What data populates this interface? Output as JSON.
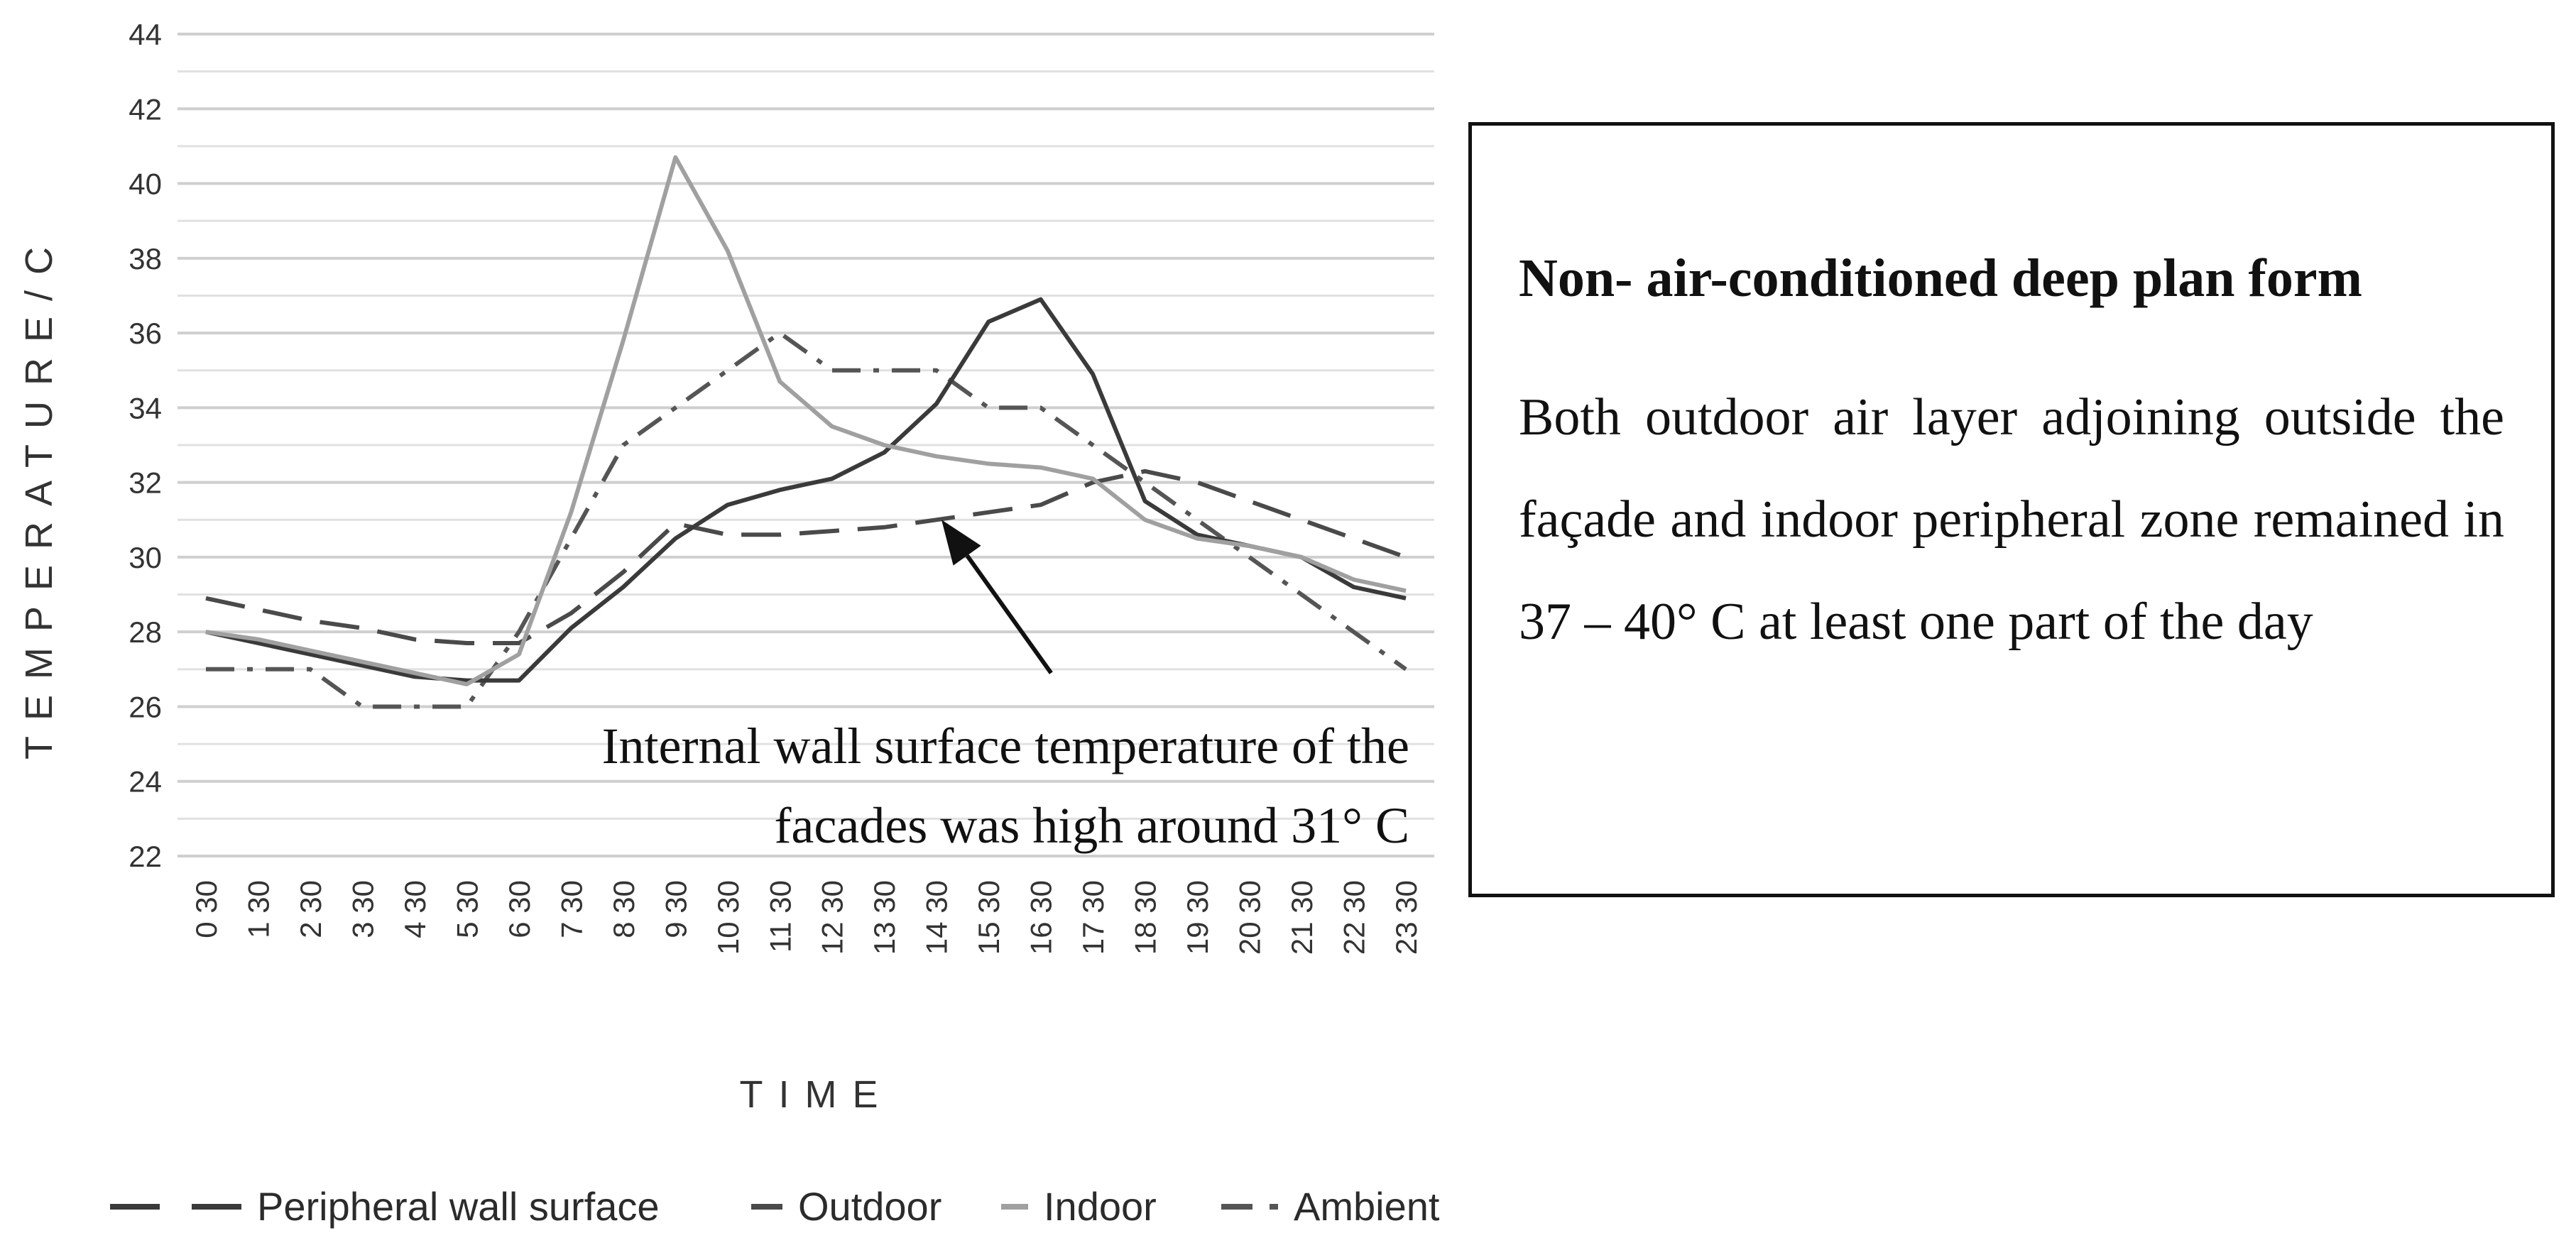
{
  "chart_data": {
    "type": "line",
    "title": "",
    "xlabel": "TIME",
    "ylabel": "TEMPERATURE/C",
    "ylim": [
      22,
      44
    ],
    "ytick_step": 2,
    "grid": true,
    "categories": [
      "0 30",
      "1 30",
      "2 30",
      "3 30",
      "4 30",
      "5 30",
      "6 30",
      "7 30",
      "8 30",
      "9 30",
      "10 30",
      "11 30",
      "12 30",
      "13 30",
      "14 30",
      "15 30",
      "16 30",
      "17 30",
      "18 30",
      "19 30",
      "20 30",
      "21 30",
      "22 30",
      "23 30"
    ],
    "series": [
      {
        "name": "Peripheral wall surface",
        "color": "#3a3a3a",
        "dash": "solid",
        "values": [
          28.0,
          27.7,
          27.4,
          27.1,
          26.8,
          26.7,
          26.7,
          28.1,
          29.2,
          30.5,
          31.4,
          31.8,
          32.1,
          32.8,
          34.1,
          36.3,
          36.9,
          34.9,
          31.5,
          30.6,
          30.3,
          30.0,
          29.2,
          28.9
        ]
      },
      {
        "name": "Outdoor",
        "color": "#4a4a4a",
        "dash": "long-dash",
        "values": [
          28.9,
          28.6,
          28.3,
          28.1,
          27.8,
          27.7,
          27.7,
          28.5,
          29.6,
          30.9,
          30.6,
          30.6,
          30.7,
          30.8,
          31.0,
          31.2,
          31.4,
          32.0,
          32.3,
          32.0,
          31.5,
          31.0,
          30.5,
          30.0
        ]
      },
      {
        "name": "Indoor",
        "color": "#a0a0a0",
        "dash": "solid",
        "values": [
          28.0,
          27.8,
          27.5,
          27.2,
          26.9,
          26.6,
          27.4,
          31.2,
          35.8,
          40.7,
          38.2,
          34.7,
          33.5,
          33.0,
          32.7,
          32.5,
          32.4,
          32.1,
          31.0,
          30.5,
          30.3,
          30.0,
          29.4,
          29.1
        ]
      },
      {
        "name": "Ambient",
        "color": "#555555",
        "dash": "dash-dot",
        "values": [
          27.0,
          27.0,
          27.0,
          26.0,
          26.0,
          26.0,
          28.0,
          30.5,
          33.0,
          34.0,
          35.0,
          36.0,
          35.0,
          35.0,
          35.0,
          34.0,
          34.0,
          33.0,
          32.0,
          31.0,
          30.0,
          29.0,
          28.0,
          27.0
        ]
      }
    ],
    "annotation": {
      "lines": [
        "Internal wall surface temperature of the",
        "facades was high around 31° C"
      ],
      "arrow_from": {
        "x_index": 16.2,
        "y": 26.9
      },
      "arrow_to": {
        "x_index": 14.1,
        "y": 31.0
      }
    }
  },
  "info_box": {
    "title": "Non- air-conditioned deep plan form",
    "body": "Both outdoor air layer adjoining outside the façade and indoor peripheral zone remained in 37 – 40° C at least one part of the day"
  }
}
